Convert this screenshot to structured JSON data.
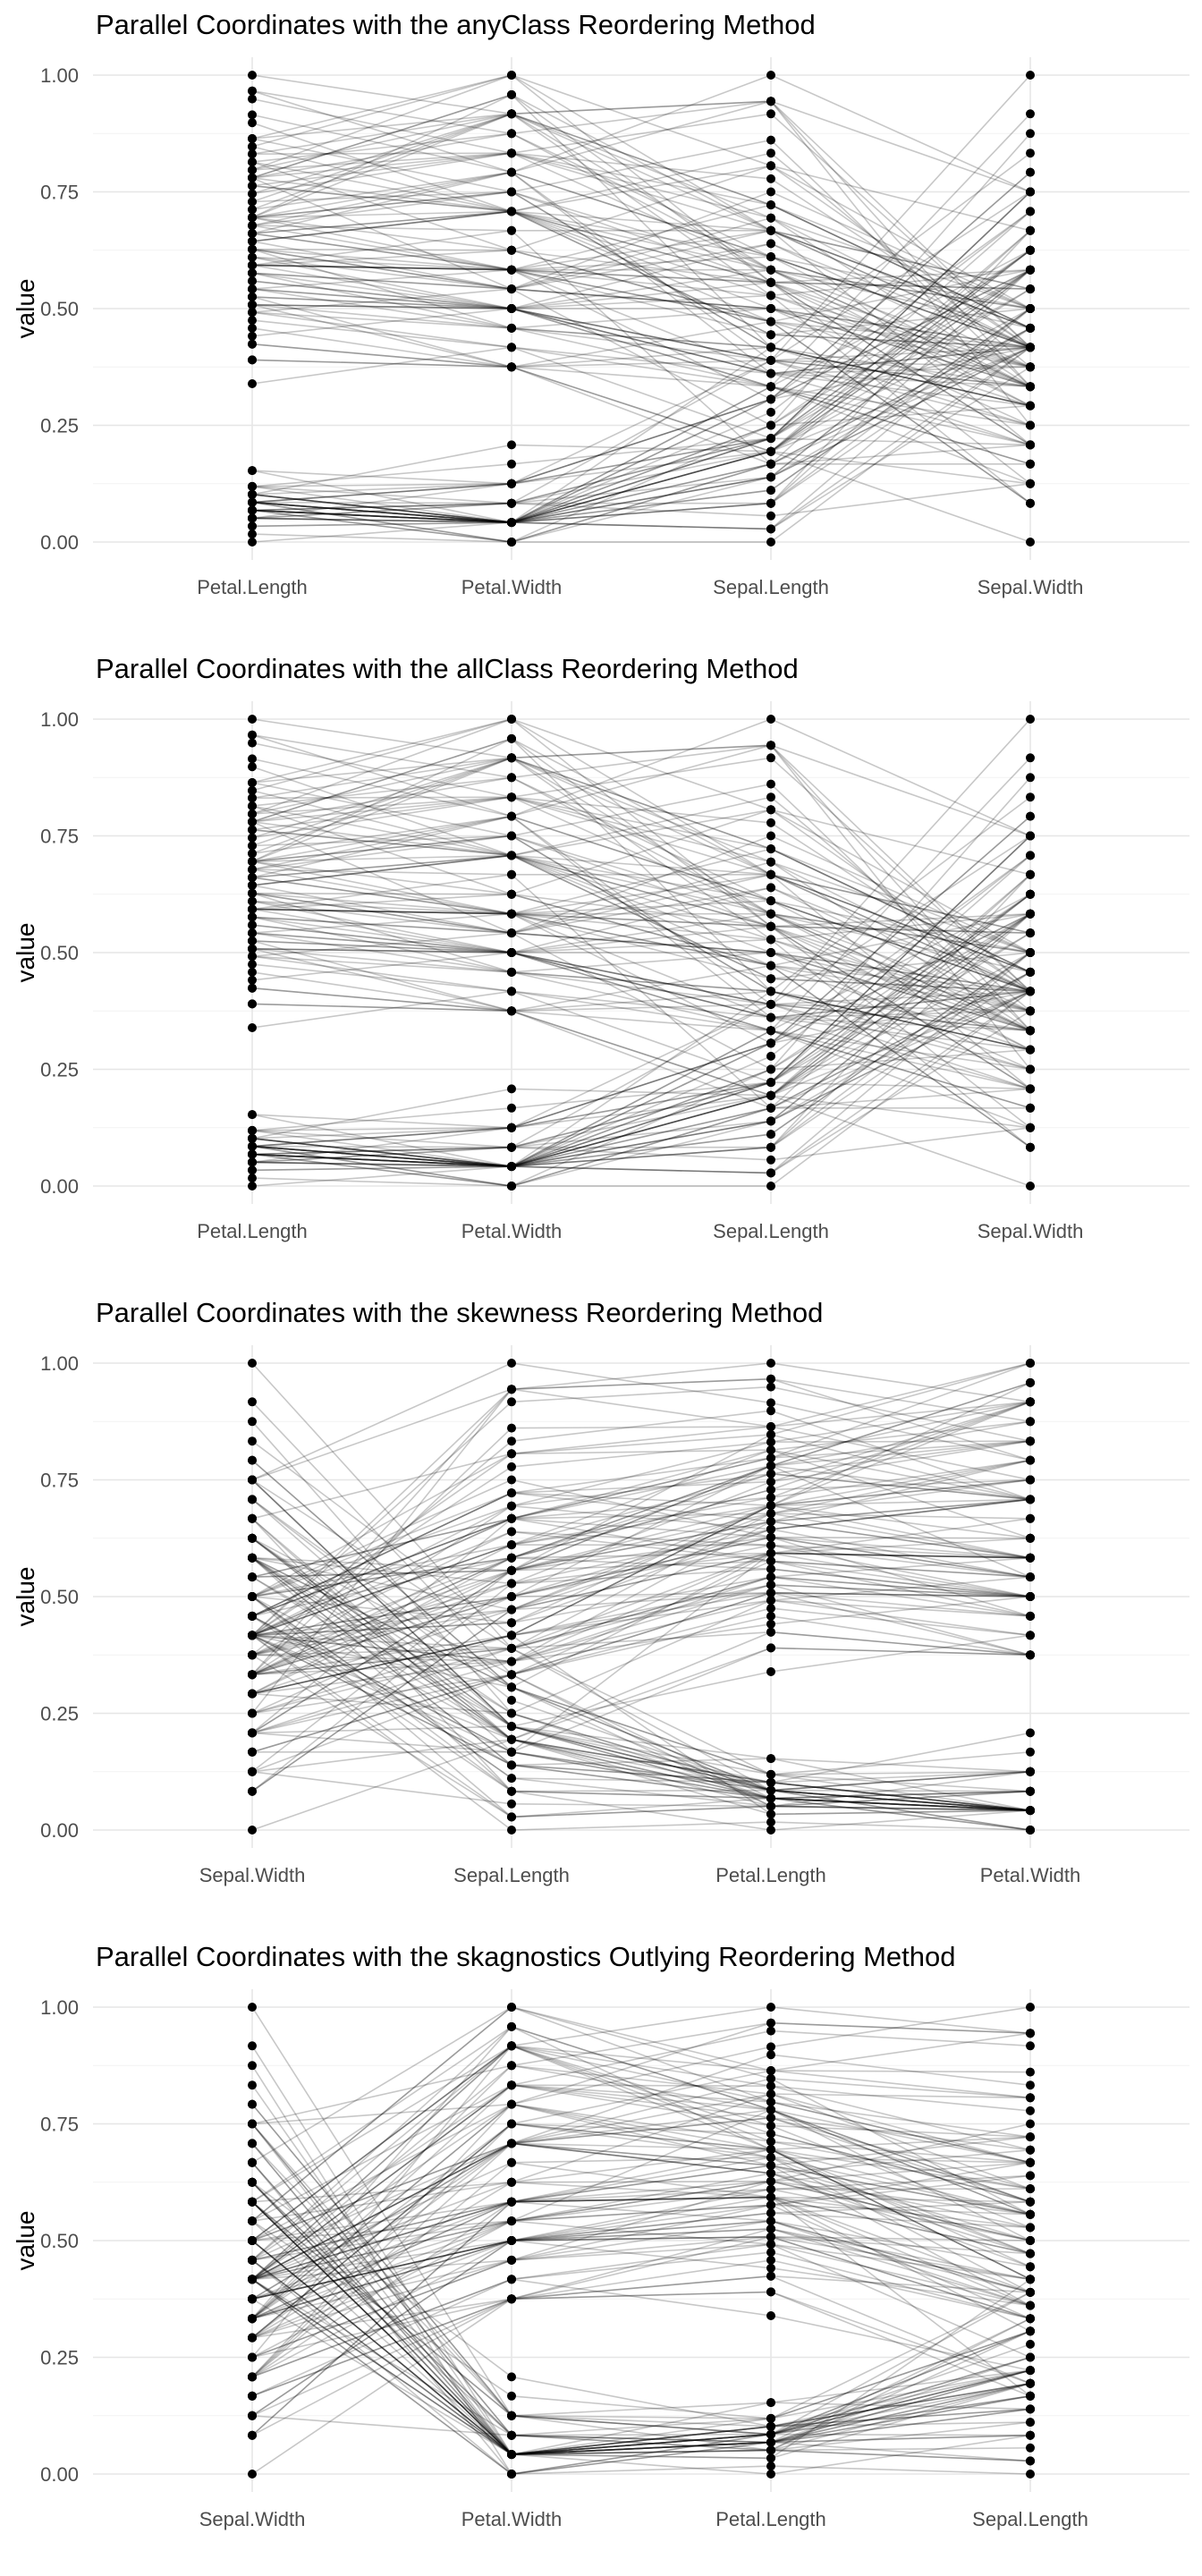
{
  "palette": {
    "line": "#000000",
    "point": "#000000",
    "grid": "#e6e6e6",
    "tick": "#4d4d4d"
  },
  "chart_data": [
    {
      "type": "line",
      "title": "Parallel Coordinates with the anyClass Reordering Method",
      "xlabel": "",
      "ylabel": "value",
      "categories": [
        "Petal.Length",
        "Petal.Width",
        "Sepal.Length",
        "Sepal.Width"
      ],
      "order": [
        "PL",
        "PW",
        "SL",
        "SW"
      ],
      "ylim": [
        0,
        1
      ],
      "yticks": [
        "0.00",
        "0.25",
        "0.50",
        "0.75",
        "1.00"
      ],
      "grid": true,
      "legend": "none"
    },
    {
      "type": "line",
      "title": "Parallel Coordinates with the allClass Reordering Method",
      "xlabel": "",
      "ylabel": "value",
      "categories": [
        "Petal.Length",
        "Petal.Width",
        "Sepal.Length",
        "Sepal.Width"
      ],
      "order": [
        "PL",
        "PW",
        "SL",
        "SW"
      ],
      "ylim": [
        0,
        1
      ],
      "yticks": [
        "0.00",
        "0.25",
        "0.50",
        "0.75",
        "1.00"
      ],
      "grid": true,
      "legend": "none"
    },
    {
      "type": "line",
      "title": "Parallel Coordinates with the skewness Reordering Method",
      "xlabel": "",
      "ylabel": "value",
      "categories": [
        "Sepal.Width",
        "Sepal.Length",
        "Petal.Length",
        "Petal.Width"
      ],
      "order": [
        "SW",
        "SL",
        "PL",
        "PW"
      ],
      "ylim": [
        0,
        1
      ],
      "yticks": [
        "0.00",
        "0.25",
        "0.50",
        "0.75",
        "1.00"
      ],
      "grid": true,
      "legend": "none"
    },
    {
      "type": "line",
      "title": "Parallel Coordinates with the skagnostics Outlying Reordering Method",
      "xlabel": "",
      "ylabel": "value",
      "categories": [
        "Sepal.Width",
        "Petal.Width",
        "Petal.Length",
        "Sepal.Length"
      ],
      "order": [
        "SW",
        "PW",
        "PL",
        "SL"
      ],
      "ylim": [
        0,
        1
      ],
      "yticks": [
        "0.00",
        "0.25",
        "0.50",
        "0.75",
        "1.00"
      ],
      "grid": true,
      "legend": "none"
    }
  ],
  "observations": {
    "PL": [
      0.068,
      0.068,
      0.051,
      0.085,
      0.068,
      0.119,
      0.068,
      0.085,
      0.068,
      0.085,
      0.085,
      0.102,
      0.068,
      0.017,
      0.034,
      0.085,
      0.051,
      0.068,
      0.119,
      0.085,
      0.119,
      0.085,
      0.0,
      0.119,
      0.153,
      0.102,
      0.102,
      0.085,
      0.068,
      0.102,
      0.102,
      0.085,
      0.085,
      0.068,
      0.085,
      0.034,
      0.051,
      0.068,
      0.051,
      0.085,
      0.051,
      0.051,
      0.051,
      0.102,
      0.153,
      0.068,
      0.102,
      0.068,
      0.085,
      0.068,
      0.627,
      0.593,
      0.661,
      0.508,
      0.61,
      0.593,
      0.627,
      0.39,
      0.61,
      0.492,
      0.424,
      0.542,
      0.508,
      0.627,
      0.441,
      0.576,
      0.593,
      0.525,
      0.593,
      0.492,
      0.644,
      0.508,
      0.661,
      0.627,
      0.559,
      0.576,
      0.644,
      0.678,
      0.593,
      0.424,
      0.475,
      0.458,
      0.492,
      0.695,
      0.593,
      0.593,
      0.627,
      0.576,
      0.525,
      0.508,
      0.576,
      0.61,
      0.508,
      0.39,
      0.542,
      0.542,
      0.542,
      0.559,
      0.339,
      0.525,
      0.847,
      0.695,
      0.831,
      0.78,
      0.814,
      0.949,
      0.593,
      0.898,
      0.814,
      0.864,
      0.695,
      0.729,
      0.763,
      0.678,
      0.695,
      0.729,
      0.763,
      0.966,
      1.0,
      0.678,
      0.797,
      0.661,
      0.966,
      0.661,
      0.797,
      0.847,
      0.644,
      0.661,
      0.78,
      0.814,
      0.864,
      0.915,
      0.78,
      0.695,
      0.78,
      0.864,
      0.78,
      0.763,
      0.644,
      0.746,
      0.78,
      0.695,
      0.695,
      0.831,
      0.797,
      0.712,
      0.678,
      0.712,
      0.746,
      0.695
    ],
    "PW": [
      0.042,
      0.042,
      0.042,
      0.042,
      0.042,
      0.125,
      0.083,
      0.042,
      0.042,
      0.0,
      0.042,
      0.042,
      0.0,
      0.0,
      0.042,
      0.125,
      0.125,
      0.083,
      0.083,
      0.083,
      0.042,
      0.125,
      0.042,
      0.167,
      0.042,
      0.042,
      0.125,
      0.042,
      0.042,
      0.042,
      0.042,
      0.125,
      0.0,
      0.042,
      0.042,
      0.042,
      0.042,
      0.0,
      0.042,
      0.042,
      0.083,
      0.083,
      0.042,
      0.208,
      0.125,
      0.083,
      0.042,
      0.042,
      0.042,
      0.042,
      0.542,
      0.583,
      0.583,
      0.5,
      0.583,
      0.5,
      0.625,
      0.375,
      0.5,
      0.542,
      0.375,
      0.583,
      0.375,
      0.542,
      0.5,
      0.542,
      0.583,
      0.375,
      0.583,
      0.417,
      0.708,
      0.5,
      0.583,
      0.458,
      0.5,
      0.542,
      0.542,
      0.667,
      0.583,
      0.375,
      0.417,
      0.375,
      0.458,
      0.625,
      0.583,
      0.625,
      0.583,
      0.5,
      0.5,
      0.5,
      0.458,
      0.542,
      0.458,
      0.375,
      0.5,
      0.458,
      0.5,
      0.5,
      0.417,
      0.5,
      1.0,
      0.75,
      0.833,
      0.708,
      0.875,
      0.833,
      0.667,
      0.708,
      0.708,
      1.0,
      0.792,
      0.75,
      0.833,
      0.792,
      0.958,
      0.917,
      0.708,
      0.875,
      0.917,
      0.583,
      0.917,
      0.792,
      0.792,
      0.708,
      0.833,
      0.708,
      0.708,
      0.708,
      0.833,
      0.625,
      0.75,
      0.792,
      0.875,
      0.583,
      0.542,
      0.917,
      0.958,
      0.708,
      0.708,
      0.833,
      0.958,
      0.917,
      0.75,
      0.917,
      1.0,
      0.917,
      0.75,
      0.792,
      0.917,
      0.708
    ],
    "SL": [
      0.222,
      0.167,
      0.111,
      0.083,
      0.194,
      0.306,
      0.083,
      0.194,
      0.028,
      0.167,
      0.306,
      0.139,
      0.139,
      0.0,
      0.417,
      0.389,
      0.306,
      0.222,
      0.389,
      0.222,
      0.306,
      0.222,
      0.083,
      0.222,
      0.139,
      0.194,
      0.194,
      0.25,
      0.25,
      0.111,
      0.139,
      0.306,
      0.25,
      0.333,
      0.167,
      0.194,
      0.333,
      0.167,
      0.028,
      0.222,
      0.194,
      0.056,
      0.028,
      0.194,
      0.222,
      0.139,
      0.222,
      0.083,
      0.278,
      0.194,
      0.75,
      0.583,
      0.722,
      0.333,
      0.611,
      0.389,
      0.556,
      0.167,
      0.639,
      0.25,
      0.194,
      0.444,
      0.472,
      0.5,
      0.361,
      0.667,
      0.361,
      0.417,
      0.528,
      0.361,
      0.444,
      0.5,
      0.556,
      0.5,
      0.583,
      0.639,
      0.694,
      0.667,
      0.472,
      0.389,
      0.333,
      0.333,
      0.417,
      0.472,
      0.306,
      0.472,
      0.667,
      0.556,
      0.361,
      0.333,
      0.333,
      0.5,
      0.417,
      0.194,
      0.361,
      0.389,
      0.389,
      0.528,
      0.222,
      0.389,
      0.556,
      0.417,
      0.778,
      0.556,
      0.611,
      0.917,
      0.167,
      0.833,
      0.667,
      0.806,
      0.611,
      0.583,
      0.694,
      0.389,
      0.417,
      0.583,
      0.611,
      0.944,
      0.944,
      0.472,
      0.722,
      0.361,
      0.944,
      0.556,
      0.667,
      0.806,
      0.528,
      0.5,
      0.583,
      0.806,
      0.861,
      1.0,
      0.583,
      0.556,
      0.5,
      0.944,
      0.556,
      0.583,
      0.472,
      0.722,
      0.667,
      0.722,
      0.417,
      0.694,
      0.667,
      0.667,
      0.556,
      0.611,
      0.528,
      0.444
    ],
    "SW": [
      0.625,
      0.417,
      0.5,
      0.458,
      0.667,
      0.792,
      0.583,
      0.583,
      0.375,
      0.458,
      0.708,
      0.583,
      0.417,
      0.417,
      0.833,
      1.0,
      0.792,
      0.625,
      0.75,
      0.75,
      0.583,
      0.708,
      0.667,
      0.542,
      0.583,
      0.417,
      0.583,
      0.625,
      0.583,
      0.5,
      0.458,
      0.583,
      0.875,
      0.917,
      0.458,
      0.5,
      0.625,
      0.667,
      0.417,
      0.583,
      0.625,
      0.125,
      0.5,
      0.625,
      0.75,
      0.417,
      0.75,
      0.5,
      0.708,
      0.542,
      0.5,
      0.5,
      0.458,
      0.125,
      0.333,
      0.333,
      0.542,
      0.167,
      0.375,
      0.292,
      0.0,
      0.417,
      0.083,
      0.375,
      0.375,
      0.458,
      0.417,
      0.292,
      0.083,
      0.208,
      0.5,
      0.333,
      0.208,
      0.333,
      0.375,
      0.417,
      0.333,
      0.417,
      0.375,
      0.25,
      0.167,
      0.167,
      0.292,
      0.292,
      0.417,
      0.583,
      0.458,
      0.125,
      0.417,
      0.208,
      0.25,
      0.417,
      0.25,
      0.125,
      0.292,
      0.417,
      0.375,
      0.375,
      0.208,
      0.333,
      0.542,
      0.292,
      0.417,
      0.375,
      0.417,
      0.417,
      0.208,
      0.375,
      0.208,
      0.667,
      0.5,
      0.292,
      0.417,
      0.208,
      0.333,
      0.5,
      0.417,
      0.75,
      0.25,
      0.083,
      0.5,
      0.333,
      0.333,
      0.292,
      0.542,
      0.5,
      0.333,
      0.417,
      0.333,
      0.417,
      0.333,
      0.75,
      0.333,
      0.333,
      0.25,
      0.417,
      0.583,
      0.458,
      0.417,
      0.458,
      0.458,
      0.458,
      0.292,
      0.5,
      0.542,
      0.417,
      0.208,
      0.417,
      0.583,
      0.417
    ]
  }
}
